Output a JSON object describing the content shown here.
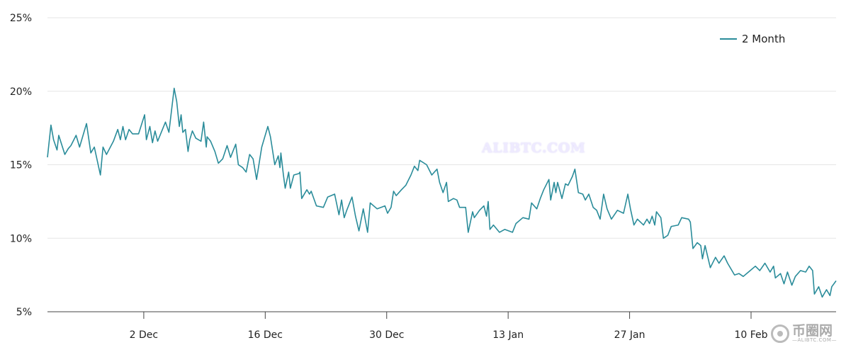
{
  "chart_data": {
    "type": "line",
    "title": "",
    "xlabel": "",
    "ylabel": "",
    "x_unit": "days since 21 Nov",
    "xlim": [
      0,
      90.9
    ],
    "ylim": [
      5,
      25
    ],
    "yticks": [
      5,
      10,
      15,
      20,
      25
    ],
    "ytick_labels": [
      "5%",
      "10%",
      "15%",
      "20%",
      "25%"
    ],
    "xticks": [
      11.1,
      25.1,
      39.1,
      53.1,
      67.1,
      81.1
    ],
    "xtick_labels": [
      "2 Dec",
      "16 Dec",
      "30 Dec",
      "13 Jan",
      "27 Jan",
      "10 Feb"
    ],
    "grid": "horizontal",
    "legend_position": "top-right",
    "series": [
      {
        "name": "2 Month",
        "color": "#2a8c9a",
        "points": [
          [
            0,
            15.5
          ],
          [
            0.4,
            17.7
          ],
          [
            0.7,
            16.7
          ],
          [
            1.1,
            16.0
          ],
          [
            1.3,
            17.0
          ],
          [
            2.0,
            15.7
          ],
          [
            2.4,
            16.1
          ],
          [
            2.7,
            16.3
          ],
          [
            3.3,
            17.0
          ],
          [
            3.7,
            16.2
          ],
          [
            4.5,
            17.8
          ],
          [
            5.0,
            15.8
          ],
          [
            5.4,
            16.2
          ],
          [
            6.1,
            14.3
          ],
          [
            6.4,
            16.2
          ],
          [
            6.8,
            15.7
          ],
          [
            7.6,
            16.6
          ],
          [
            8.1,
            17.4
          ],
          [
            8.4,
            16.7
          ],
          [
            8.7,
            17.6
          ],
          [
            9.0,
            16.7
          ],
          [
            9.4,
            17.4
          ],
          [
            9.8,
            17.1
          ],
          [
            10.5,
            17.1
          ],
          [
            11.2,
            18.4
          ],
          [
            11.4,
            16.7
          ],
          [
            11.8,
            17.6
          ],
          [
            12.1,
            16.5
          ],
          [
            12.4,
            17.3
          ],
          [
            12.7,
            16.6
          ],
          [
            13.6,
            17.9
          ],
          [
            14.0,
            17.2
          ],
          [
            14.6,
            20.2
          ],
          [
            14.9,
            19.3
          ],
          [
            15.2,
            17.6
          ],
          [
            15.4,
            18.4
          ],
          [
            15.6,
            17.2
          ],
          [
            15.9,
            17.4
          ],
          [
            16.2,
            15.9
          ],
          [
            16.4,
            16.7
          ],
          [
            16.7,
            17.3
          ],
          [
            17.1,
            16.8
          ],
          [
            17.7,
            16.6
          ],
          [
            18.0,
            17.9
          ],
          [
            18.3,
            16.2
          ],
          [
            18.4,
            16.9
          ],
          [
            18.8,
            16.6
          ],
          [
            19.3,
            15.9
          ],
          [
            19.7,
            15.1
          ],
          [
            20.2,
            15.4
          ],
          [
            20.7,
            16.3
          ],
          [
            21.1,
            15.5
          ],
          [
            21.3,
            15.8
          ],
          [
            21.7,
            16.4
          ],
          [
            22.0,
            15.0
          ],
          [
            22.5,
            14.8
          ],
          [
            22.9,
            14.5
          ],
          [
            23.3,
            15.7
          ],
          [
            23.7,
            15.4
          ],
          [
            24.1,
            14.0
          ],
          [
            24.7,
            16.2
          ],
          [
            25.4,
            17.6
          ],
          [
            25.7,
            16.9
          ],
          [
            26.2,
            15.0
          ],
          [
            26.6,
            15.6
          ],
          [
            26.8,
            14.8
          ],
          [
            26.9,
            15.8
          ],
          [
            27.2,
            14.3
          ],
          [
            27.4,
            13.4
          ],
          [
            27.8,
            14.5
          ],
          [
            28.0,
            13.4
          ],
          [
            28.4,
            14.3
          ],
          [
            29.0,
            14.4
          ],
          [
            29.1,
            14.5
          ],
          [
            29.3,
            12.7
          ],
          [
            29.9,
            13.3
          ],
          [
            30.2,
            13.0
          ],
          [
            30.4,
            13.2
          ],
          [
            31.0,
            12.2
          ],
          [
            31.8,
            12.1
          ],
          [
            32.3,
            12.8
          ],
          [
            33.1,
            13.0
          ],
          [
            33.6,
            11.6
          ],
          [
            33.9,
            12.6
          ],
          [
            34.2,
            11.4
          ],
          [
            34.5,
            11.9
          ],
          [
            35.1,
            12.8
          ],
          [
            35.5,
            11.5
          ],
          [
            35.9,
            10.5
          ],
          [
            36.4,
            12.0
          ],
          [
            36.9,
            10.4
          ],
          [
            37.2,
            12.4
          ],
          [
            38.0,
            12.0
          ],
          [
            38.9,
            12.2
          ],
          [
            39.2,
            11.7
          ],
          [
            39.6,
            12.1
          ],
          [
            39.9,
            13.2
          ],
          [
            40.2,
            12.9
          ],
          [
            40.8,
            13.3
          ],
          [
            41.3,
            13.6
          ],
          [
            41.9,
            14.3
          ],
          [
            42.3,
            14.9
          ],
          [
            42.7,
            14.6
          ],
          [
            42.9,
            15.3
          ],
          [
            43.7,
            15.0
          ],
          [
            44.3,
            14.3
          ],
          [
            44.9,
            14.7
          ],
          [
            45.2,
            13.8
          ],
          [
            45.6,
            13.1
          ],
          [
            46.0,
            13.8
          ],
          [
            46.2,
            12.5
          ],
          [
            46.8,
            12.7
          ],
          [
            47.2,
            12.6
          ],
          [
            47.5,
            12.1
          ],
          [
            48.2,
            12.1
          ],
          [
            48.5,
            10.4
          ],
          [
            49.0,
            11.8
          ],
          [
            49.2,
            11.4
          ],
          [
            49.8,
            11.9
          ],
          [
            50.3,
            12.2
          ],
          [
            50.6,
            11.5
          ],
          [
            50.8,
            12.5
          ],
          [
            51.0,
            10.6
          ],
          [
            51.4,
            10.9
          ],
          [
            52.1,
            10.4
          ],
          [
            52.7,
            10.6
          ],
          [
            53.6,
            10.4
          ],
          [
            54.0,
            11.0
          ],
          [
            54.8,
            11.4
          ],
          [
            55.5,
            11.3
          ],
          [
            55.8,
            12.4
          ],
          [
            56.4,
            12.0
          ],
          [
            56.8,
            12.7
          ],
          [
            57.2,
            13.3
          ],
          [
            57.8,
            14.0
          ],
          [
            58.0,
            12.6
          ],
          [
            58.4,
            13.8
          ],
          [
            58.6,
            13.1
          ],
          [
            58.8,
            13.8
          ],
          [
            59.3,
            12.7
          ],
          [
            59.7,
            13.7
          ],
          [
            60.0,
            13.6
          ],
          [
            60.5,
            14.2
          ],
          [
            60.8,
            14.7
          ],
          [
            61.2,
            13.1
          ],
          [
            61.7,
            13.0
          ],
          [
            62.0,
            12.6
          ],
          [
            62.4,
            13.0
          ],
          [
            62.9,
            12.1
          ],
          [
            63.3,
            11.9
          ],
          [
            63.7,
            11.3
          ],
          [
            64.1,
            13.0
          ],
          [
            64.5,
            12.0
          ],
          [
            65.0,
            11.3
          ],
          [
            65.7,
            11.9
          ],
          [
            66.4,
            11.7
          ],
          [
            66.9,
            13.0
          ],
          [
            67.2,
            12.0
          ],
          [
            67.6,
            10.9
          ],
          [
            68.0,
            11.3
          ],
          [
            68.7,
            10.9
          ],
          [
            69.1,
            11.3
          ],
          [
            69.4,
            11.0
          ],
          [
            69.7,
            11.5
          ],
          [
            70.0,
            10.9
          ],
          [
            70.2,
            11.8
          ],
          [
            70.7,
            11.4
          ],
          [
            71.0,
            10.0
          ],
          [
            71.5,
            10.2
          ],
          [
            71.9,
            10.8
          ],
          [
            72.7,
            10.9
          ],
          [
            73.1,
            11.4
          ],
          [
            73.9,
            11.3
          ],
          [
            74.1,
            11.1
          ],
          [
            74.4,
            9.3
          ],
          [
            74.9,
            9.7
          ],
          [
            75.3,
            9.5
          ],
          [
            75.5,
            8.6
          ],
          [
            75.8,
            9.5
          ],
          [
            76.4,
            8.0
          ],
          [
            77.0,
            8.7
          ],
          [
            77.4,
            8.3
          ],
          [
            78.0,
            8.8
          ],
          [
            78.4,
            8.3
          ],
          [
            79.2,
            7.5
          ],
          [
            79.7,
            7.6
          ],
          [
            80.2,
            7.4
          ],
          [
            80.8,
            7.7
          ],
          [
            81.6,
            8.1
          ],
          [
            82.1,
            7.8
          ],
          [
            82.7,
            8.3
          ],
          [
            83.3,
            7.7
          ],
          [
            83.7,
            8.1
          ],
          [
            83.9,
            7.3
          ],
          [
            84.5,
            7.6
          ],
          [
            84.9,
            6.9
          ],
          [
            85.3,
            7.7
          ],
          [
            85.8,
            6.8
          ],
          [
            86.2,
            7.4
          ],
          [
            86.8,
            7.8
          ],
          [
            87.4,
            7.7
          ],
          [
            87.8,
            8.1
          ],
          [
            88.2,
            7.8
          ],
          [
            88.4,
            6.2
          ],
          [
            88.9,
            6.7
          ],
          [
            89.3,
            6.0
          ],
          [
            89.8,
            6.5
          ],
          [
            90.2,
            6.1
          ],
          [
            90.4,
            6.7
          ],
          [
            90.9,
            7.1
          ]
        ]
      }
    ]
  },
  "watermark": "ALIBTC.COM",
  "logo": {
    "cn": "币圈网",
    "en": "—ALIBTC.COM—"
  }
}
